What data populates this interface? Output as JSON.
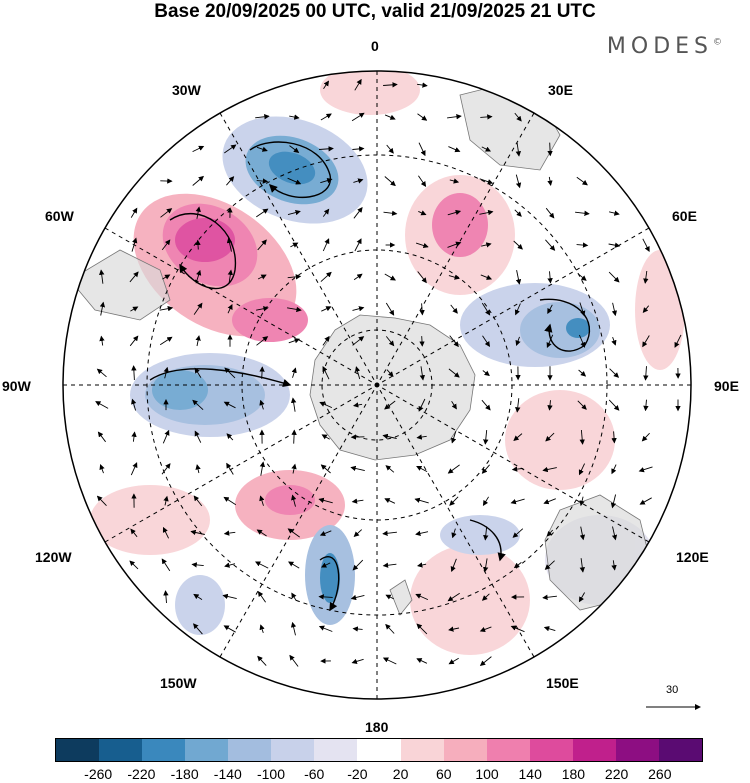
{
  "title": "Base 20/09/2025 00 UTC, valid 21/09/2025 21 UTC",
  "brand": "MODES",
  "brand_mark": "©",
  "longitude_labels": {
    "top": "0",
    "top_right": "30E",
    "right_upper": "60E",
    "right": "90E",
    "right_lower": "120E",
    "bottom_right": "150E",
    "bottom": "180",
    "bottom_left": "150W",
    "left_lower": "120W",
    "left": "90W",
    "left_upper": "60W",
    "top_left": "30W"
  },
  "reference_vector": {
    "value": "30"
  },
  "colorbar": {
    "colors": [
      "#0d3b5e",
      "#175e8f",
      "#3a88bd",
      "#71a8d1",
      "#a3bddf",
      "#c8d1ea",
      "#e4e3f1",
      "#ffffff",
      "#f9d4d7",
      "#f6aebd",
      "#ef7fae",
      "#de4b9d",
      "#c0208c",
      "#8d0e82",
      "#5a0b72"
    ],
    "labels": [
      "-260",
      "-220",
      "-180",
      "-140",
      "-100",
      "-60",
      "-20",
      "20",
      "60",
      "100",
      "140",
      "180",
      "220",
      "260"
    ]
  }
}
